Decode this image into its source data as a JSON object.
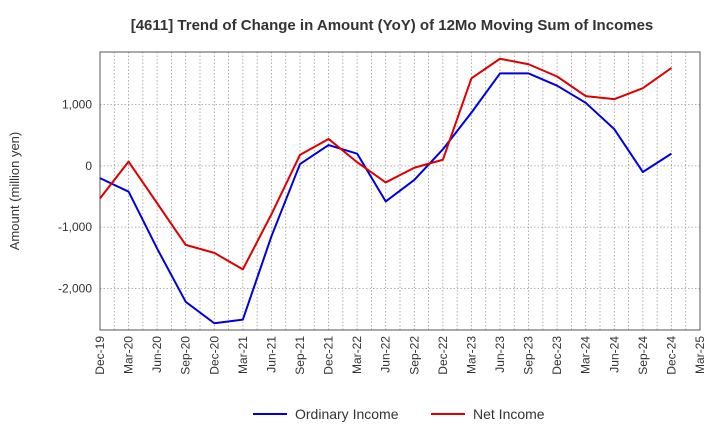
{
  "chart_data": {
    "type": "line",
    "title": "[4611]  Trend of Change in Amount (YoY) of 12Mo Moving Sum of Incomes",
    "xlabel": "",
    "ylabel": "Amount (million yen)",
    "categories": [
      "Dec-19",
      "Mar-20",
      "Jun-20",
      "Sep-20",
      "Dec-20",
      "Mar-21",
      "Jun-21",
      "Sep-21",
      "Dec-21",
      "Mar-22",
      "Jun-22",
      "Sep-22",
      "Dec-22",
      "Mar-23",
      "Jun-23",
      "Sep-23",
      "Dec-23",
      "Mar-24",
      "Jun-24",
      "Sep-24",
      "Dec-24",
      "Mar-25"
    ],
    "yticks": [
      -2000,
      -1000,
      0,
      1000
    ],
    "ytick_labels": [
      "-2,000",
      "-1,000",
      "0",
      "1,000"
    ],
    "ylim": [
      -2680,
      1860
    ],
    "grid": true,
    "legend_position": "bottom-center",
    "series": [
      {
        "name": "Ordinary Income",
        "color": "#0000dd",
        "values": [
          -200,
          -420,
          -1350,
          -2220,
          -2570,
          -2510,
          -1150,
          30,
          340,
          200,
          -580,
          -230,
          270,
          870,
          1510,
          1510,
          1310,
          1030,
          600,
          -100,
          200,
          null
        ]
      },
      {
        "name": "Net Income",
        "color": "#dd0000",
        "values": [
          -530,
          70,
          -610,
          -1290,
          -1420,
          -1690,
          -790,
          180,
          440,
          60,
          -270,
          -30,
          100,
          1430,
          1750,
          1660,
          1460,
          1140,
          1090,
          1270,
          1600,
          null
        ]
      }
    ]
  }
}
